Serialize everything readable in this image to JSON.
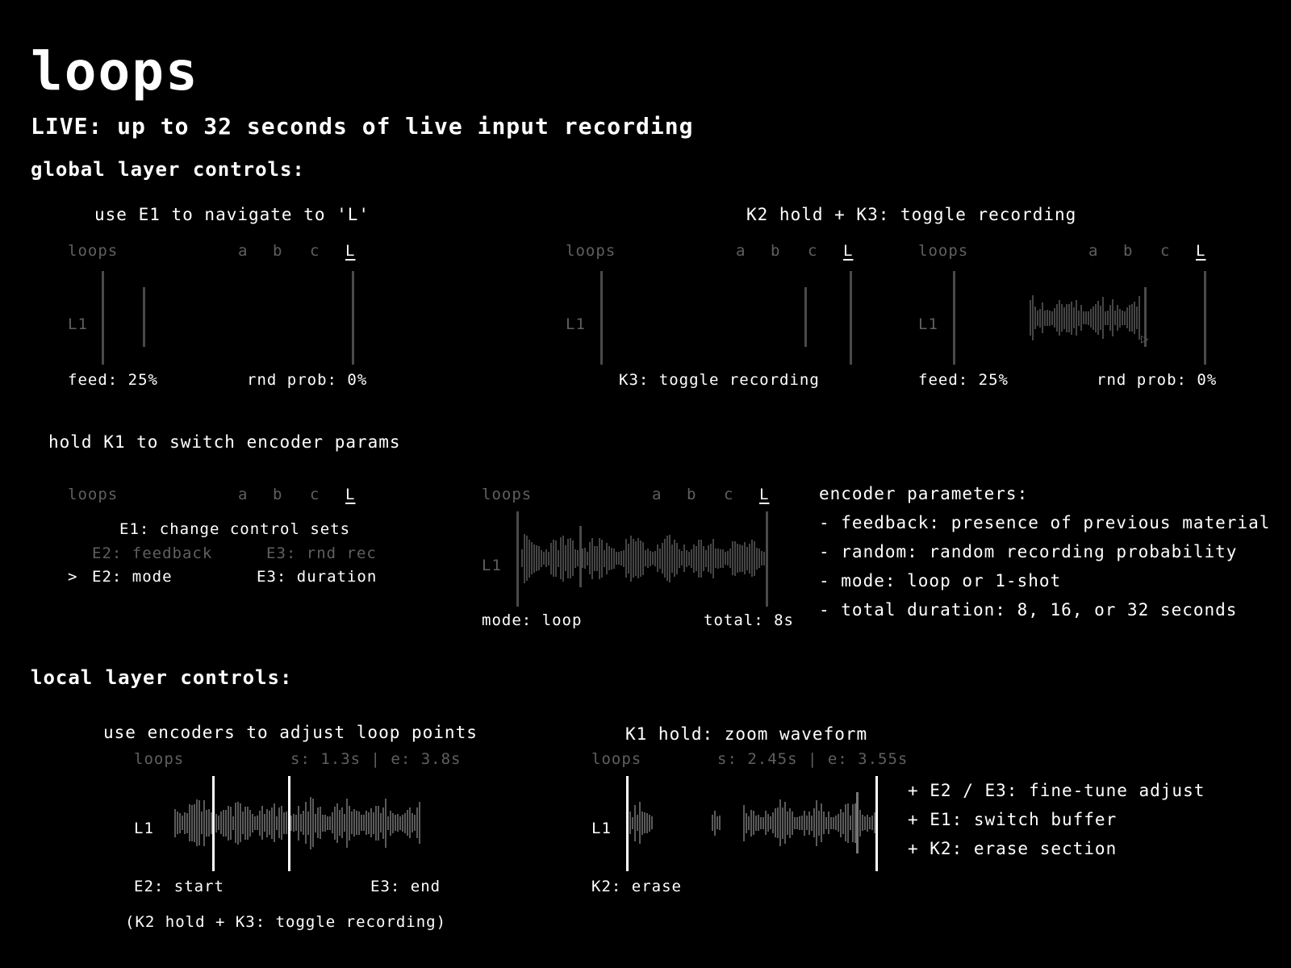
{
  "title": "loops",
  "subtitle": "LIVE: up to 32 seconds of live input recording",
  "global_section": {
    "heading": "global layer controls:",
    "nav_caption": "use E1 to navigate to 'L'",
    "rec_caption": "K2 hold + K3: toggle recording",
    "k1_caption": "hold K1 to switch encoder params"
  },
  "screen": {
    "app_label": "loops",
    "tabs": [
      "a",
      "b",
      "c",
      "L"
    ],
    "layer_label": "L1"
  },
  "screen1": {
    "left": "feed: 25%",
    "right": "rnd prob: 0%"
  },
  "screen2": {
    "bottom": "K3: toggle recording"
  },
  "screen3": {
    "left": "feed: 25%",
    "right": "rnd prob: 0%"
  },
  "screen4": {
    "heading": "E1: change control sets",
    "dim_left": "E2: feedback",
    "dim_right": "E3: rnd rec",
    "cursor": ">",
    "sel_left": "E2: mode",
    "sel_right": "E3: duration"
  },
  "screen5": {
    "left": "mode: loop",
    "right": "total: 8s"
  },
  "encoder_params": {
    "heading": "encoder parameters:",
    "items": [
      "- feedback: presence of previous material",
      "- random: random recording probability",
      "- mode: loop or 1-shot",
      "- total duration: 8, 16, or 32 seconds"
    ]
  },
  "local_section": {
    "heading": "local layer controls:",
    "loop_caption": "use encoders to adjust loop points",
    "zoom_caption": "K1 hold: zoom waveform"
  },
  "screen6": {
    "info": "s: 1.3s | e: 3.8s",
    "left": "E2: start",
    "right": "E3: end",
    "note": "(K2 hold + K3: toggle recording)"
  },
  "screen7": {
    "info": "s: 2.45s | e: 3.55s",
    "left": "K2: erase",
    "items": [
      "+ E2 / E3: fine-tune adjust",
      "+ E1: switch buffer",
      "+ K2: erase section"
    ]
  },
  "colors": {
    "background": "#000000",
    "text": "#ffffff",
    "dim": "#5f5f5f",
    "line": "#4a4a4a"
  }
}
